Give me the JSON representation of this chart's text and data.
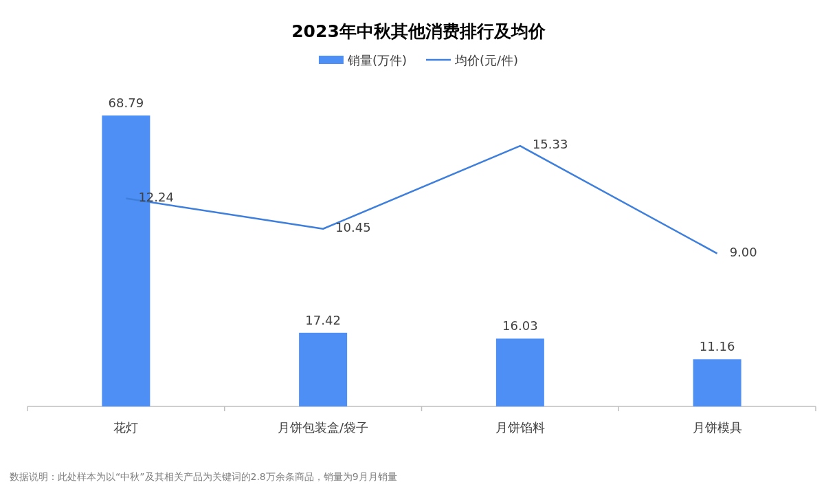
{
  "chart_data": {
    "type": "bar",
    "title": "2023年中秋其他消费排行及均价",
    "categories": [
      "花灯",
      "月饼包装盒/袋子",
      "月饼馅料",
      "月饼模具"
    ],
    "series": [
      {
        "name": "销量(万件)",
        "color": "#4e8ff5",
        "values": [
          68.79,
          17.42,
          16.03,
          11.16
        ]
      },
      {
        "name": "均价(元/件)",
        "type": "line",
        "axis": "y2",
        "color": "#3f7fdc",
        "values": [
          12.24,
          10.45,
          15.33,
          9.0
        ],
        "value_labels": [
          "12.24",
          "10.45",
          "15.33",
          "9.00"
        ]
      }
    ],
    "data_labels": true,
    "legend": "top",
    "tick_labels": "x",
    "marker": "none",
    "line_style": "solid",
    "annotations": [
      "数据说明：此处样本为以“中秋”及其相关产品为关键词的2.8万余条商品，销量为9月月销量"
    ]
  }
}
